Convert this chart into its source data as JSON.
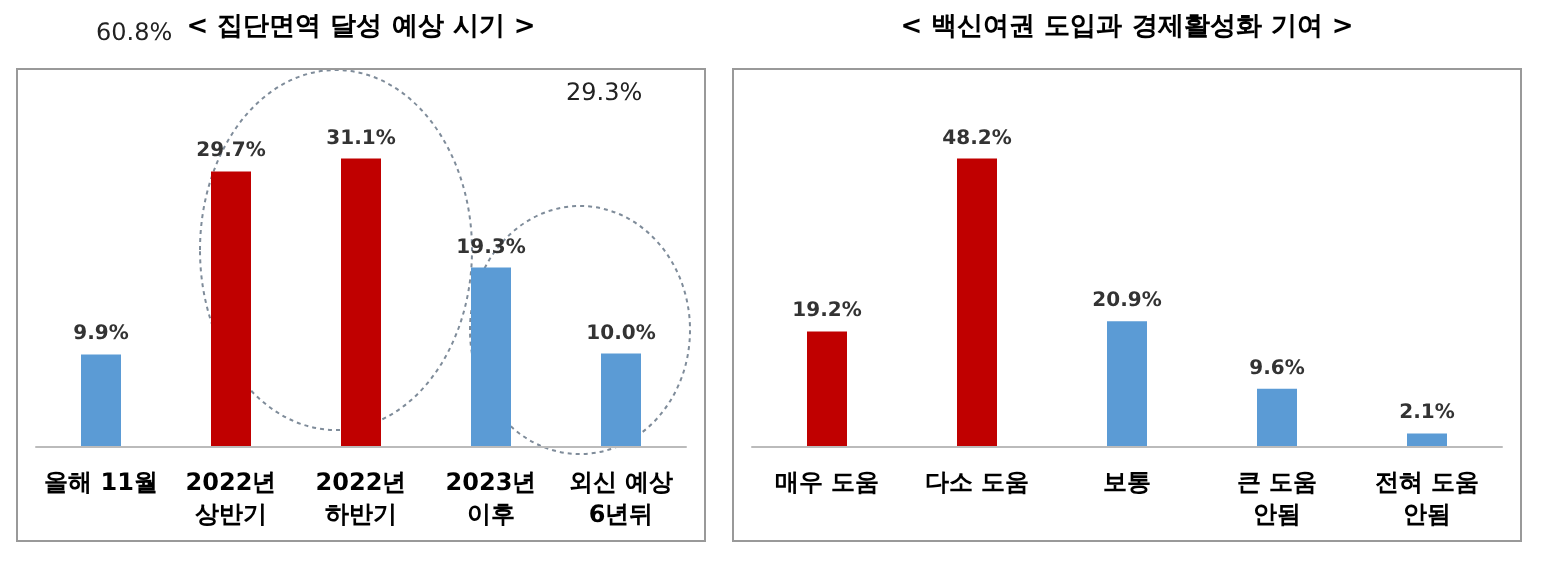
{
  "chart_data": [
    {
      "type": "bar",
      "title": "< 집단면역 달성 예상 시기 >",
      "categories": [
        "올해 11월",
        "2022년\n상반기",
        "2022년\n하반기",
        "2023년\n이후",
        "외신 예상\n6년뒤"
      ],
      "values": [
        9.9,
        29.7,
        31.1,
        19.3,
        10.0
      ],
      "colors": [
        "#5b9bd5",
        "#c00000",
        "#c00000",
        "#5b9bd5",
        "#5b9bd5"
      ],
      "value_labels": [
        "9.9%",
        "29.7%",
        "31.1%",
        "19.3%",
        "10.0%"
      ],
      "annotations": [
        "60.8%",
        "29.3%"
      ]
    },
    {
      "type": "bar",
      "title": "< 백신여권 도입과 경제활성화 기여 >",
      "categories": [
        "매우 도움",
        "다소 도움",
        "보통",
        "큰 도움\n안됨",
        "전혀 도움\n안됨"
      ],
      "values": [
        19.2,
        48.2,
        20.9,
        9.6,
        2.1
      ],
      "colors": [
        "#c00000",
        "#c00000",
        "#5b9bd5",
        "#5b9bd5",
        "#5b9bd5"
      ],
      "value_labels": [
        "19.2%",
        "48.2%",
        "20.9%",
        "9.6%",
        "2.1%"
      ]
    }
  ]
}
